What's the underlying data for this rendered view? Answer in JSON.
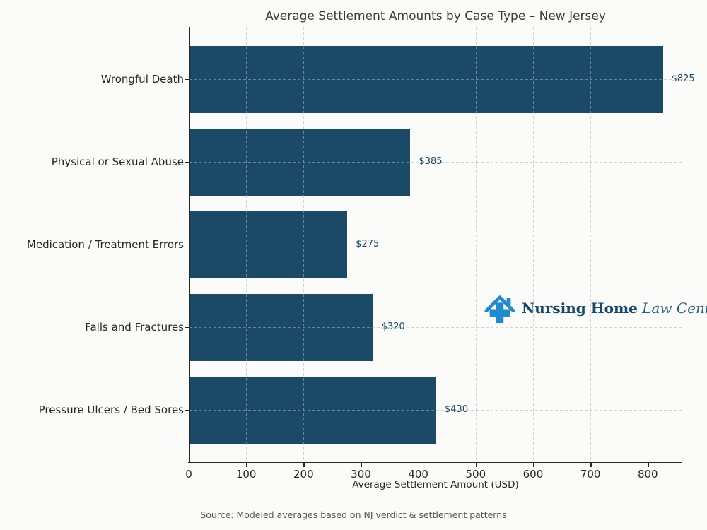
{
  "figure": {
    "background": "#fbfbf9"
  },
  "chart_data": {
    "type": "bar",
    "orientation": "horizontal",
    "title": "Average Settlement Amounts by Case Type – New Jersey",
    "xlabel": "Average Settlement Amount (USD)",
    "ylabel": "",
    "categories": [
      "Wrongful Death",
      "Physical or Sexual Abuse",
      "Medication / Treatment Errors",
      "Falls and Fractures",
      "Pressure Ulcers / Bed Sores"
    ],
    "values": [
      825,
      385,
      275,
      320,
      430
    ],
    "value_labels": [
      "$825",
      "$385",
      "$275",
      "$320",
      "$430"
    ],
    "xlim": [
      0,
      860
    ],
    "xticks": [
      0,
      100,
      200,
      300,
      400,
      500,
      600,
      700,
      800
    ],
    "grid": "dashed, both axes",
    "legend": "none",
    "bar_color": "#1b4a68",
    "value_label_color": "#1b4965"
  },
  "source_note": "Source: Modeled averages based on NJ verdict & settlement patterns",
  "logo": {
    "icon": "house-with-medical-cross",
    "icon_color": "#1f8ace",
    "primary": "Nursing Home",
    "secondary": " Law Center LLC",
    "primary_color": "#16476b",
    "secondary_color": "#2a5d80"
  }
}
